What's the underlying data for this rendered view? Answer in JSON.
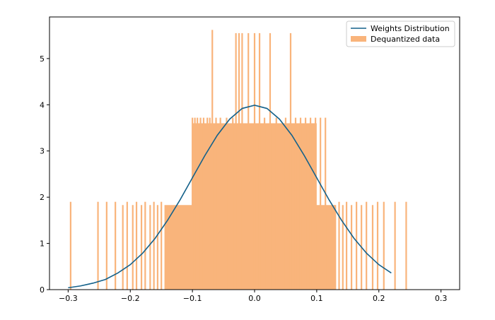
{
  "chart_data": {
    "type": "bar",
    "xlim": [
      -0.33,
      0.33
    ],
    "ylim": [
      0,
      5.9
    ],
    "x_ticks": [
      -0.3,
      -0.2,
      -0.1,
      0.0,
      0.1,
      0.2,
      0.3
    ],
    "x_tick_labels": [
      "−0.3",
      "−0.2",
      "−0.1",
      "0.0",
      "0.1",
      "0.2",
      "0.3"
    ],
    "y_ticks": [
      0,
      1,
      2,
      3,
      4,
      5
    ],
    "y_tick_labels": [
      "0",
      "1",
      "2",
      "3",
      "4",
      "5"
    ],
    "grid": false,
    "legend": {
      "placement": "top-right",
      "entries": [
        {
          "label": "Weights Distribution",
          "kind": "line"
        },
        {
          "label": "Dequantized data",
          "kind": "patch"
        }
      ]
    },
    "series": [
      {
        "name": "Weights Distribution",
        "type": "line",
        "color": "#14618a",
        "x": [
          -0.3,
          -0.28,
          -0.26,
          -0.24,
          -0.22,
          -0.2,
          -0.18,
          -0.16,
          -0.14,
          -0.12,
          -0.1,
          -0.08,
          -0.06,
          -0.04,
          -0.02,
          0.0,
          0.02,
          0.04,
          0.06,
          0.08,
          0.1,
          0.12,
          0.14,
          0.16,
          0.18,
          0.2,
          0.22
        ],
        "y": [
          0.04,
          0.08,
          0.14,
          0.22,
          0.36,
          0.54,
          0.79,
          1.11,
          1.5,
          1.94,
          2.42,
          2.9,
          3.34,
          3.69,
          3.92,
          3.99,
          3.92,
          3.69,
          3.34,
          2.9,
          2.42,
          1.94,
          1.5,
          1.11,
          0.79,
          0.54,
          0.36
        ]
      },
      {
        "name": "Dequantized data",
        "type": "histogram",
        "color": "#f9b47b",
        "bars": [
          {
            "x": -0.296,
            "h": 1.9
          },
          {
            "x": -0.252,
            "h": 1.9
          },
          {
            "x": -0.238,
            "h": 1.9
          },
          {
            "x": -0.224,
            "h": 1.9
          },
          {
            "x": -0.212,
            "h": 1.83
          },
          {
            "x": -0.205,
            "h": 1.9
          },
          {
            "x": -0.196,
            "h": 1.83
          },
          {
            "x": -0.19,
            "h": 1.9
          },
          {
            "x": -0.182,
            "h": 1.83
          },
          {
            "x": -0.176,
            "h": 1.9
          },
          {
            "x": -0.168,
            "h": 1.83
          },
          {
            "x": -0.162,
            "h": 1.9
          },
          {
            "x": -0.156,
            "h": 1.83
          },
          {
            "x": -0.15,
            "h": 1.9
          },
          {
            "x": -0.1,
            "h": 3.72
          },
          {
            "x": -0.096,
            "h": 3.72
          },
          {
            "x": -0.092,
            "h": 3.72
          },
          {
            "x": -0.087,
            "h": 3.72
          },
          {
            "x": -0.082,
            "h": 3.72
          },
          {
            "x": -0.076,
            "h": 3.72
          },
          {
            "x": -0.072,
            "h": 3.72
          },
          {
            "x": -0.068,
            "h": 5.62
          },
          {
            "x": -0.062,
            "h": 3.72
          },
          {
            "x": -0.055,
            "h": 3.72
          },
          {
            "x": -0.045,
            "h": 3.72
          },
          {
            "x": -0.035,
            "h": 3.72
          },
          {
            "x": -0.03,
            "h": 5.55
          },
          {
            "x": -0.025,
            "h": 5.55
          },
          {
            "x": -0.02,
            "h": 5.55
          },
          {
            "x": -0.01,
            "h": 5.55
          },
          {
            "x": 0.0,
            "h": 5.55
          },
          {
            "x": 0.008,
            "h": 5.55
          },
          {
            "x": 0.016,
            "h": 3.72
          },
          {
            "x": 0.025,
            "h": 5.55
          },
          {
            "x": 0.035,
            "h": 3.72
          },
          {
            "x": 0.05,
            "h": 3.72
          },
          {
            "x": 0.058,
            "h": 5.55
          },
          {
            "x": 0.066,
            "h": 3.72
          },
          {
            "x": 0.074,
            "h": 3.72
          },
          {
            "x": 0.082,
            "h": 3.72
          },
          {
            "x": 0.09,
            "h": 3.72
          },
          {
            "x": 0.098,
            "h": 3.72
          },
          {
            "x": 0.106,
            "h": 3.72
          },
          {
            "x": 0.114,
            "h": 3.72
          },
          {
            "x": 0.13,
            "h": 1.83
          },
          {
            "x": 0.136,
            "h": 1.9
          },
          {
            "x": 0.142,
            "h": 1.83
          },
          {
            "x": 0.148,
            "h": 1.9
          },
          {
            "x": 0.156,
            "h": 1.83
          },
          {
            "x": 0.164,
            "h": 1.9
          },
          {
            "x": 0.172,
            "h": 1.83
          },
          {
            "x": 0.18,
            "h": 1.9
          },
          {
            "x": 0.19,
            "h": 1.83
          },
          {
            "x": 0.198,
            "h": 1.9
          },
          {
            "x": 0.208,
            "h": 1.9
          },
          {
            "x": 0.226,
            "h": 1.9
          },
          {
            "x": 0.244,
            "h": 1.9
          }
        ],
        "plateaus": [
          {
            "x0": -0.145,
            "x1": 0.13,
            "h": 1.83
          },
          {
            "x0": -0.1,
            "x1": 0.1,
            "h": 3.6
          }
        ]
      }
    ]
  }
}
